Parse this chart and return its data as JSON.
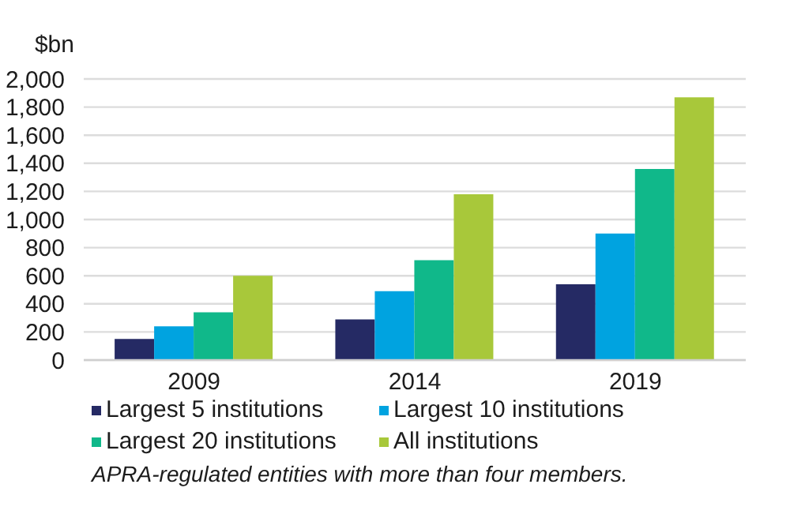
{
  "chart_data": {
    "type": "bar",
    "ylabel": "$bn",
    "categories": [
      "2009",
      "2014",
      "2019"
    ],
    "series": [
      {
        "name": "Largest 5 institutions",
        "color": "#252a64",
        "values": [
          150,
          290,
          540
        ]
      },
      {
        "name": "Largest 10 institutions",
        "color": "#00a3e0",
        "values": [
          240,
          490,
          900
        ]
      },
      {
        "name": "Largest 20 institutions",
        "color": "#10b88a",
        "values": [
          340,
          710,
          1360
        ]
      },
      {
        "name": "All institutions",
        "color": "#a8c83a",
        "values": [
          600,
          1180,
          1870
        ]
      }
    ],
    "ylim": [
      0,
      2000
    ],
    "yticks": [
      0,
      200,
      400,
      600,
      800,
      {
        "value": 1000,
        "label": "1,000"
      },
      {
        "value": 1200,
        "label": "1,200"
      },
      {
        "value": 1400,
        "label": "1,400"
      },
      {
        "value": 1600,
        "label": "1,600"
      },
      {
        "value": 1800,
        "label": "1,800"
      },
      {
        "value": 2000,
        "label": "2,000"
      }
    ],
    "grid": "y",
    "legend": "bottom",
    "annotations": [
      "APRA-regulated entities with more than four members."
    ]
  }
}
